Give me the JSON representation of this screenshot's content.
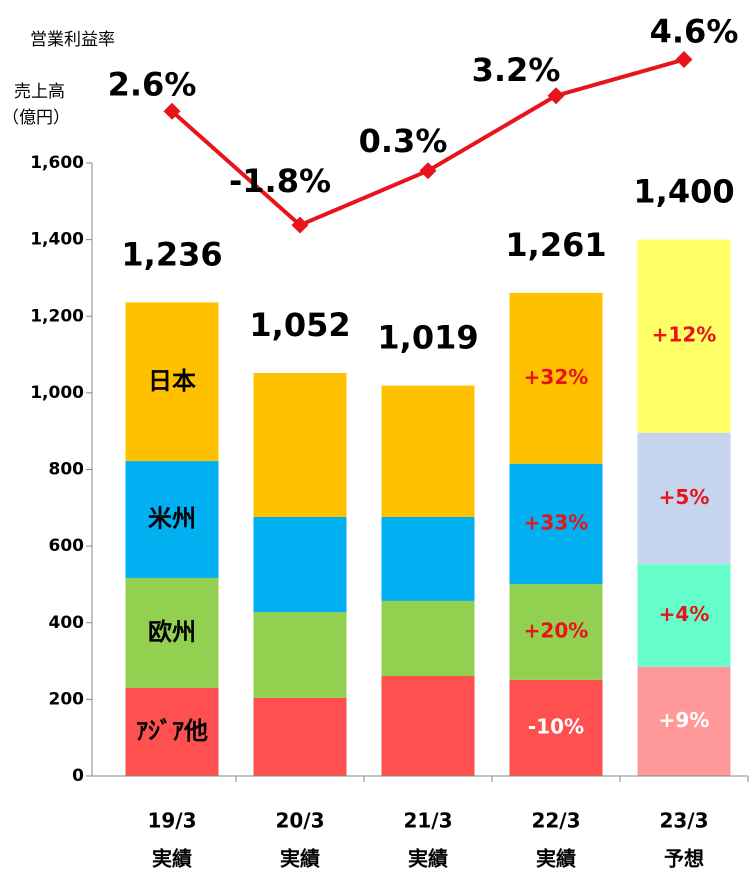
{
  "chart_data": {
    "type": "stacked-bar-line",
    "axis_label_line": "営業利益率",
    "axis_label_bar": [
      "売上高",
      "（億円）"
    ],
    "categories": [
      "19/3",
      "20/3",
      "21/3",
      "22/3",
      "23/3"
    ],
    "sublabels": [
      "実績",
      "実績",
      "実績",
      "実績",
      "予想"
    ],
    "ylim": [
      0,
      1600
    ],
    "yticks": [
      0,
      200,
      400,
      600,
      800,
      {
        "value": 1000,
        "label": "1,000"
      },
      {
        "value": 1200,
        "label": "1,200"
      },
      {
        "value": 1400,
        "label": "1,400"
      },
      {
        "value": 1600,
        "label": "1,600"
      }
    ],
    "y2lim": [
      -23.1,
      0.6
    ],
    "series": [
      {
        "name": "ｱｼﾞｱ他",
        "color": "#ff5050",
        "forecast_color": "#ff9999",
        "values": [
          230,
          204,
          261,
          251,
          285
        ],
        "growth_labels": [
          null,
          null,
          null,
          "-10%",
          "+9%"
        ]
      },
      {
        "name": "欧州",
        "color": "#92d050",
        "forecast_color": "#66ffcc",
        "values": [
          287,
          224,
          196,
          250,
          268
        ],
        "growth_labels": [
          null,
          null,
          null,
          "+20%",
          "+4%"
        ]
      },
      {
        "name": "米州",
        "color": "#00b0f0",
        "forecast_color": "#c5d5ee",
        "values": [
          305,
          248,
          219,
          314,
          343
        ],
        "growth_labels": [
          null,
          null,
          null,
          "+33%",
          "+5%"
        ]
      },
      {
        "name": "日本",
        "color": "#ffc000",
        "forecast_color": "#ffff66",
        "values": [
          414,
          376,
          343,
          446,
          504
        ],
        "growth_labels": [
          null,
          null,
          null,
          "+32%",
          "+12%"
        ]
      }
    ],
    "totals": [
      1236,
      1052,
      1019,
      1261,
      1400
    ],
    "total_labels": [
      "1,236",
      "1,052",
      "1,019",
      "1,261",
      "1,400"
    ],
    "line": {
      "name": "営業利益率",
      "color": "#e8141c",
      "axis": "y2",
      "values": [
        2.6,
        -1.8,
        0.3,
        3.2,
        4.6
      ],
      "value_labels": [
        "2.6%",
        "-1.8%",
        "0.3%",
        "3.2%",
        "4.6%"
      ]
    },
    "forecast_index": 4
  }
}
